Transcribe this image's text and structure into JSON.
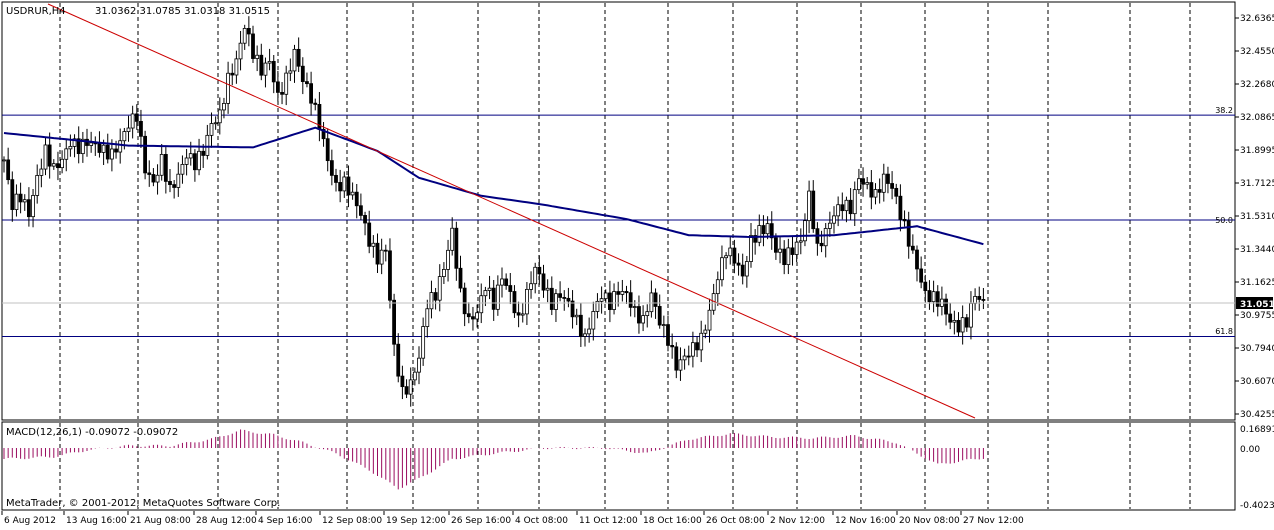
{
  "header": {
    "symbol_timeframe": "USDRUR,H4",
    "ohlc": "31.0362 31.0785 31.0318 31.0515"
  },
  "indicator": {
    "label": "MACD(12,26,1) -0.09072 -0.09072",
    "levels": [
      "0.16891",
      "0.00",
      "-0.40234"
    ]
  },
  "footer": {
    "copyright": "MetaTrader, © 2001-2012, MetaQuotes Software Corp."
  },
  "price_scale": [
    "32.6365",
    "32.4550",
    "32.2680",
    "32.0865",
    "31.8995",
    "31.7125",
    "31.5310",
    "31.3440",
    "31.1625",
    "30.9755",
    "30.7940",
    "30.6070",
    "30.4255"
  ],
  "current_price": "31.0515",
  "fib_levels": [
    {
      "label": "38.2",
      "price": 32.1
    },
    {
      "label": "50.0",
      "price": 31.515
    },
    {
      "label": "61.8",
      "price": 30.865
    }
  ],
  "time_axis": [
    "6 Aug 2012",
    "13 Aug 16:00",
    "21 Aug 08:00",
    "28 Aug 12:00",
    "4 Sep 16:00",
    "12 Sep 08:00",
    "19 Sep 12:00",
    "26 Sep 16:00",
    "4 Oct 08:00",
    "11 Oct 12:00",
    "18 Oct 16:00",
    "26 Oct 08:00",
    "2 Nov 12:00",
    "12 Nov 16:00",
    "20 Nov 08:00",
    "27 Nov 12:00"
  ],
  "colors": {
    "background": "#ffffff",
    "grid": "#000000",
    "trendline": "#cc0000",
    "moving_average": "#000080",
    "macd_bars": "#9a0c5f",
    "horizontal_lines": "#000080",
    "current_price_box": "#000000"
  },
  "chart_data": {
    "type": "candlestick",
    "symbol": "USDRUR",
    "timeframe": "H4",
    "y_range": [
      30.41,
      32.72
    ],
    "close_path": [
      [
        0,
        31.85
      ],
      [
        2,
        31.6
      ],
      [
        4,
        31.65
      ],
      [
        6,
        31.55
      ],
      [
        8,
        31.75
      ],
      [
        10,
        31.9
      ],
      [
        12,
        31.8
      ],
      [
        14,
        31.85
      ],
      [
        16,
        31.95
      ],
      [
        18,
        31.92
      ],
      [
        20,
        31.95
      ],
      [
        22,
        31.93
      ],
      [
        24,
        31.9
      ],
      [
        26,
        31.88
      ],
      [
        28,
        31.95
      ],
      [
        30,
        32.05
      ],
      [
        32,
        32.1
      ],
      [
        34,
        31.8
      ],
      [
        36,
        31.72
      ],
      [
        38,
        31.85
      ],
      [
        40,
        31.68
      ],
      [
        42,
        31.76
      ],
      [
        44,
        31.88
      ],
      [
        46,
        31.83
      ],
      [
        48,
        31.9
      ],
      [
        50,
        32.05
      ],
      [
        52,
        32.1
      ],
      [
        54,
        32.3
      ],
      [
        56,
        32.4
      ],
      [
        58,
        32.6
      ],
      [
        60,
        32.45
      ],
      [
        62,
        32.35
      ],
      [
        64,
        32.4
      ],
      [
        66,
        32.2
      ],
      [
        68,
        32.3
      ],
      [
        70,
        32.45
      ],
      [
        72,
        32.3
      ],
      [
        74,
        32.2
      ],
      [
        76,
        32.05
      ],
      [
        78,
        31.85
      ],
      [
        80,
        31.7
      ],
      [
        82,
        31.72
      ],
      [
        84,
        31.65
      ],
      [
        86,
        31.55
      ],
      [
        88,
        31.4
      ],
      [
        90,
        31.3
      ],
      [
        92,
        31.35
      ],
      [
        94,
        30.8
      ],
      [
        96,
        30.55
      ],
      [
        98,
        30.6
      ],
      [
        100,
        30.75
      ],
      [
        102,
        31.05
      ],
      [
        104,
        31.1
      ],
      [
        106,
        31.25
      ],
      [
        108,
        31.45
      ],
      [
        110,
        31.1
      ],
      [
        112,
        30.95
      ],
      [
        114,
        31.0
      ],
      [
        116,
        31.15
      ],
      [
        118,
        31.05
      ],
      [
        120,
        31.2
      ],
      [
        122,
        31.1
      ],
      [
        124,
        30.95
      ],
      [
        126,
        31.1
      ],
      [
        128,
        31.25
      ],
      [
        130,
        31.15
      ],
      [
        132,
        31.05
      ],
      [
        134,
        31.1
      ],
      [
        136,
        31.05
      ],
      [
        138,
        30.95
      ],
      [
        140,
        30.85
      ],
      [
        142,
        31.0
      ],
      [
        144,
        31.1
      ],
      [
        146,
        31.05
      ],
      [
        148,
        31.12
      ],
      [
        150,
        31.1
      ],
      [
        152,
        31.0
      ],
      [
        154,
        30.95
      ],
      [
        156,
        31.1
      ],
      [
        158,
        30.95
      ],
      [
        160,
        30.85
      ],
      [
        162,
        30.7
      ],
      [
        164,
        30.75
      ],
      [
        166,
        30.8
      ],
      [
        168,
        30.85
      ],
      [
        170,
        31.0
      ],
      [
        172,
        31.2
      ],
      [
        174,
        31.35
      ],
      [
        176,
        31.3
      ],
      [
        178,
        31.2
      ],
      [
        180,
        31.4
      ],
      [
        182,
        31.45
      ],
      [
        184,
        31.48
      ],
      [
        186,
        31.35
      ],
      [
        188,
        31.3
      ],
      [
        190,
        31.35
      ],
      [
        192,
        31.4
      ],
      [
        194,
        31.65
      ],
      [
        196,
        31.35
      ],
      [
        198,
        31.45
      ],
      [
        200,
        31.55
      ],
      [
        202,
        31.6
      ],
      [
        204,
        31.58
      ],
      [
        206,
        31.75
      ],
      [
        208,
        31.7
      ],
      [
        210,
        31.65
      ],
      [
        212,
        31.75
      ],
      [
        214,
        31.7
      ],
      [
        216,
        31.55
      ],
      [
        218,
        31.4
      ],
      [
        220,
        31.25
      ],
      [
        222,
        31.1
      ],
      [
        224,
        31.08
      ],
      [
        226,
        31.05
      ],
      [
        228,
        30.95
      ],
      [
        230,
        30.92
      ],
      [
        232,
        30.95
      ],
      [
        234,
        31.1
      ],
      [
        236,
        31.05
      ]
    ],
    "moving_average_path": [
      [
        0,
        32.0
      ],
      [
        30,
        31.93
      ],
      [
        60,
        31.92
      ],
      [
        75,
        32.03
      ],
      [
        90,
        31.9
      ],
      [
        100,
        31.75
      ],
      [
        115,
        31.65
      ],
      [
        130,
        31.6
      ],
      [
        150,
        31.52
      ],
      [
        165,
        31.43
      ],
      [
        180,
        31.42
      ],
      [
        200,
        31.43
      ],
      [
        220,
        31.48
      ],
      [
        236,
        31.38
      ]
    ],
    "macd_profile": [
      [
        0,
        -0.1
      ],
      [
        12,
        -0.08
      ],
      [
        20,
        -0.02
      ],
      [
        30,
        0.02
      ],
      [
        40,
        0.02
      ],
      [
        50,
        0.08
      ],
      [
        57,
        0.16
      ],
      [
        65,
        0.12
      ],
      [
        72,
        0.05
      ],
      [
        80,
        -0.05
      ],
      [
        88,
        -0.2
      ],
      [
        95,
        -0.37
      ],
      [
        100,
        -0.28
      ],
      [
        108,
        -0.1
      ],
      [
        118,
        -0.05
      ],
      [
        130,
        0.0
      ],
      [
        145,
        0.0
      ],
      [
        155,
        -0.05
      ],
      [
        165,
        0.08
      ],
      [
        175,
        0.13
      ],
      [
        185,
        0.1
      ],
      [
        195,
        0.09
      ],
      [
        205,
        0.11
      ],
      [
        215,
        0.05
      ],
      [
        225,
        -0.15
      ],
      [
        236,
        -0.09
      ]
    ]
  }
}
